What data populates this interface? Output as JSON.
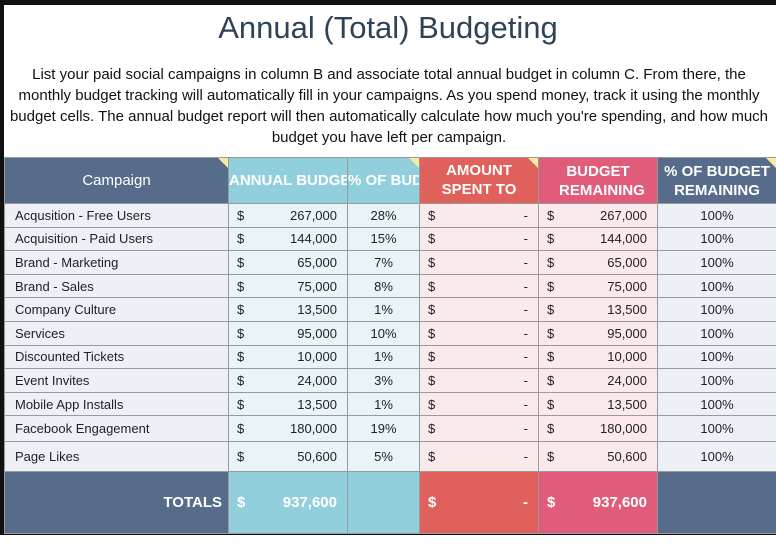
{
  "title": "Annual (Total) Budgeting",
  "description": "List your paid social campaigns in column B and associate total annual budget in column C. From there, the monthly budget tracking will automatically fill in your campaigns. As you spend money, track it using the monthly budget cells. The annual budget report will then automatically calculate how much you're spending, and how much budget you have left per campaign.",
  "headers": {
    "campaign": "Campaign",
    "annual": "ANNUAL BUDGET",
    "pct": "% OF BUDGET",
    "amount": "AMOUNT SPENT TO DATE",
    "remaining": "BUDGET REMAINING",
    "pct_remaining": "% OF BUDGET REMAINING"
  },
  "currency": "$",
  "rows": [
    {
      "campaign": "Acqusition - Free Users",
      "annual": "267,000",
      "pct": "28%",
      "spent": "-",
      "remaining": "267,000",
      "pct_remaining": "100%"
    },
    {
      "campaign": "Acquisition - Paid Users",
      "annual": "144,000",
      "pct": "15%",
      "spent": "-",
      "remaining": "144,000",
      "pct_remaining": "100%"
    },
    {
      "campaign": "Brand - Marketing",
      "annual": "65,000",
      "pct": "7%",
      "spent": "-",
      "remaining": "65,000",
      "pct_remaining": "100%"
    },
    {
      "campaign": "Brand - Sales",
      "annual": "75,000",
      "pct": "8%",
      "spent": "-",
      "remaining": "75,000",
      "pct_remaining": "100%"
    },
    {
      "campaign": "Company Culture",
      "annual": "13,500",
      "pct": "1%",
      "spent": "-",
      "remaining": "13,500",
      "pct_remaining": "100%"
    },
    {
      "campaign": "Services",
      "annual": "95,000",
      "pct": "10%",
      "spent": "-",
      "remaining": "95,000",
      "pct_remaining": "100%"
    },
    {
      "campaign": "Discounted Tickets",
      "annual": "10,000",
      "pct": "1%",
      "spent": "-",
      "remaining": "10,000",
      "pct_remaining": "100%"
    },
    {
      "campaign": "Event Invites",
      "annual": "24,000",
      "pct": "3%",
      "spent": "-",
      "remaining": "24,000",
      "pct_remaining": "100%"
    },
    {
      "campaign": "Mobile App Installs",
      "annual": "13,500",
      "pct": "1%",
      "spent": "-",
      "remaining": "13,500",
      "pct_remaining": "100%"
    },
    {
      "campaign": "Facebook Engagement",
      "annual": "180,000",
      "pct": "19%",
      "spent": "-",
      "remaining": "180,000",
      "pct_remaining": "100%"
    },
    {
      "campaign": "Page Likes",
      "annual": "50,600",
      "pct": "5%",
      "spent": "-",
      "remaining": "50,600",
      "pct_remaining": "100%"
    }
  ],
  "totals": {
    "label": "TOTALS",
    "annual": "937,600",
    "spent": "-",
    "remaining": "937,600"
  }
}
